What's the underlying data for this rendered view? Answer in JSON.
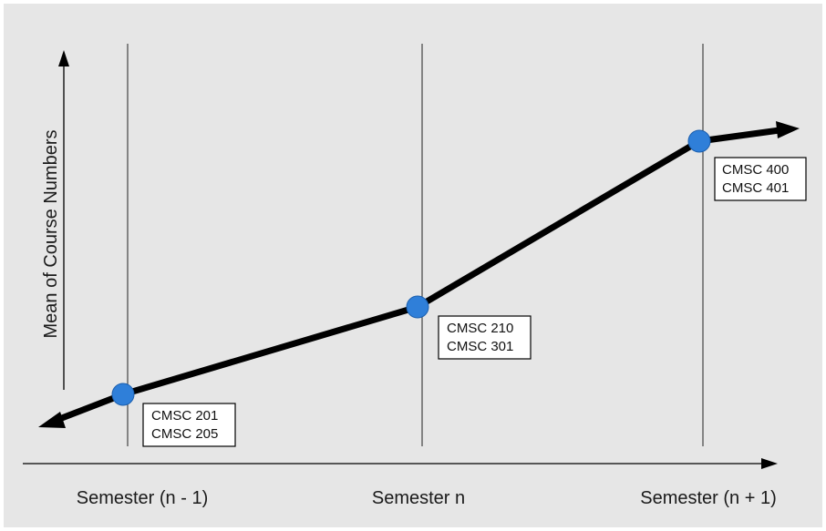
{
  "diagram": {
    "y_axis_title": "Mean of Course Numbers",
    "semesters": [
      {
        "label": "Semester (n - 1)",
        "courses": [
          "CMSC 201",
          "CMSC 205"
        ]
      },
      {
        "label": "Semester n",
        "courses": [
          "CMSC 210",
          "CMSC 301"
        ]
      },
      {
        "label": "Semester (n + 1)",
        "courses": [
          "CMSC 400",
          "CMSC 401"
        ]
      }
    ],
    "colors": {
      "background": "#e6e6e6",
      "line": "#000000",
      "point": "#2f7fd9",
      "box_fill": "#ffffff",
      "box_border": "#000000"
    }
  }
}
